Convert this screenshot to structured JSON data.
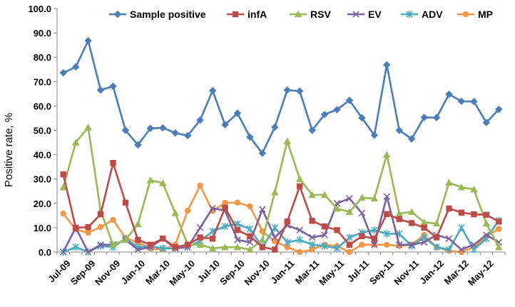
{
  "chart_data": {
    "type": "line",
    "ylabel": "Positive rate, %",
    "xlabel": "",
    "ylim": [
      0,
      100
    ],
    "y_ticks": [
      "0.0",
      "10.0",
      "20.0",
      "30.0",
      "40.0",
      "50.0",
      "60.0",
      "70.0",
      "80.0",
      "90.0",
      "100.0"
    ],
    "x": [
      "Jul-09",
      "Aug-09",
      "Sep-09",
      "Oct-09",
      "Nov-09",
      "Dec-09",
      "Jan-10",
      "Feb-10",
      "Mar-10",
      "Apr-10",
      "May-10",
      "Jun-10",
      "Jul-10",
      "Aug-10",
      "Sep-10",
      "Oct-10",
      "Nov-10",
      "Dec-10",
      "Jan-11",
      "Feb-11",
      "Mar-11",
      "Apr-11",
      "May-11",
      "Jun-11",
      "Jul-11",
      "Aug-11",
      "Sep-11",
      "Oct-11",
      "Nov-11",
      "Dec-11",
      "Jan-12",
      "Feb-12",
      "Mar-12",
      "Apr-12",
      "May-12",
      "Jun-12"
    ],
    "x_tick_labels": [
      "Jul-09",
      "Sep-09",
      "Nov-09",
      "Jan-10",
      "Mar-10",
      "May-10",
      "Jul-10",
      "Sep-10",
      "Nov-10",
      "Jan-11",
      "Mar-11",
      "May-11",
      "Jul-11",
      "Sep-11",
      "Nov-11",
      "Jan-12",
      "Mar-12",
      "May-12"
    ],
    "legend_position": "top",
    "grid": false,
    "series": [
      {
        "name": "Sample positive",
        "color": "#4a7ebb",
        "marker": "diamond",
        "values": [
          73.6,
          76.0,
          86.8,
          66.5,
          68.1,
          50.0,
          44.0,
          50.8,
          51.0,
          48.9,
          47.8,
          54.2,
          66.3,
          52.3,
          57.0,
          47.2,
          40.6,
          51.3,
          66.5,
          66.1,
          50.0,
          56.5,
          58.5,
          62.3,
          55.1,
          48.0,
          76.9,
          50.0,
          46.5,
          55.3,
          55.2,
          64.8,
          61.9,
          61.8,
          53.2,
          58.6
        ]
      },
      {
        "name": "infA",
        "color": "#be4b48",
        "marker": "square",
        "values": [
          31.9,
          10.0,
          10.2,
          15.5,
          36.6,
          20.3,
          5.0,
          3.0,
          5.5,
          2.0,
          3.0,
          6.0,
          5.5,
          18.2,
          9.0,
          6.5,
          2.0,
          1.0,
          12.5,
          27.0,
          12.8,
          10.5,
          9.0,
          3.0,
          6.5,
          5.5,
          15.6,
          13.5,
          11.9,
          10.0,
          6.0,
          17.9,
          16.2,
          15.5,
          15.3,
          12.5
        ]
      },
      {
        "name": "RSV",
        "color": "#98b954",
        "marker": "triangle",
        "values": [
          26.6,
          45.0,
          51.2,
          17.0,
          3.0,
          5.0,
          11.5,
          29.5,
          28.3,
          16.0,
          3.0,
          3.0,
          1.5,
          2.0,
          2.0,
          1.0,
          5.0,
          24.5,
          45.5,
          30.0,
          23.5,
          23.5,
          17.8,
          16.5,
          22.3,
          22.0,
          40.0,
          15.8,
          16.5,
          12.2,
          11.7,
          28.5,
          26.6,
          25.7,
          11.7,
          2.0
        ]
      },
      {
        "name": "EV",
        "color": "#7d60a0",
        "marker": "x",
        "values": [
          0.0,
          10.0,
          0.0,
          3.0,
          3.0,
          5.0,
          1.0,
          2.0,
          5.5,
          1.5,
          2.0,
          10.0,
          18.0,
          17.0,
          5.0,
          4.0,
          17.5,
          6.0,
          11.0,
          9.0,
          6.0,
          7.0,
          20.0,
          22.0,
          16.0,
          3.0,
          22.8,
          3.0,
          3.0,
          4.0,
          7.0,
          5.5,
          1.0,
          3.0,
          7.0,
          4.0
        ]
      },
      {
        "name": "ADV",
        "color": "#46aac5",
        "marker": "star",
        "values": [
          0.0,
          2.0,
          0.0,
          2.5,
          2.0,
          5.5,
          2.0,
          2.5,
          1.5,
          1.5,
          2.0,
          4.5,
          8.5,
          10.5,
          11.5,
          9.5,
          2.0,
          10.0,
          4.0,
          5.0,
          3.0,
          2.5,
          1.5,
          6.0,
          8.0,
          9.0,
          7.5,
          7.5,
          2.5,
          6.0,
          2.0,
          1.0,
          10.0,
          1.0,
          5.5,
          13.0
        ]
      },
      {
        "name": "MP",
        "color": "#f79646",
        "marker": "circle",
        "values": [
          15.8,
          9.3,
          7.9,
          10.3,
          13.2,
          5.8,
          4.0,
          1.5,
          1.0,
          3.0,
          17.0,
          27.3,
          16.8,
          20.2,
          20.3,
          18.8,
          8.5,
          4.5,
          2.0,
          0.0,
          1.0,
          3.0,
          2.5,
          0.0,
          3.0,
          3.0,
          3.0,
          2.5,
          3.0,
          7.0,
          2.0,
          0.5,
          0.0,
          2.0,
          6.5,
          9.5
        ]
      }
    ]
  }
}
